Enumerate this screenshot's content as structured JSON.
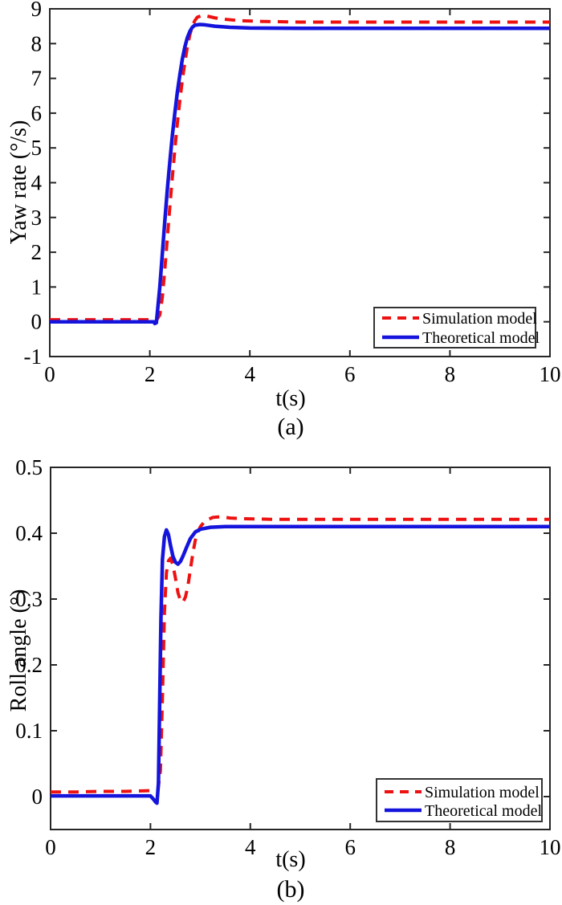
{
  "page": {
    "background": "#ffffff",
    "description": "Two stacked MATLAB-style line plots comparing simulation and theoretical vehicle models"
  },
  "colors": {
    "simulation": "#EE1111",
    "theoretical": "#1414DD",
    "axis": "#262626",
    "text": "#000000",
    "legend_border": "#333333",
    "background": "#ffffff"
  },
  "chart_data": [
    {
      "type": "line",
      "subtitle": "(a)",
      "xlabel": "t(s)",
      "ylabel": "Yaw rate (°/s)",
      "xlim": [
        0,
        10
      ],
      "ylim": [
        -1,
        9
      ],
      "grid": false,
      "xticks": {
        "values": [
          0,
          2,
          4,
          6,
          8,
          10
        ],
        "labels": [
          "0",
          "2",
          "4",
          "6",
          "8",
          "10"
        ]
      },
      "yticks": {
        "values": [
          -1,
          0,
          1,
          2,
          3,
          4,
          5,
          6,
          7,
          8,
          9
        ],
        "labels": [
          "-1",
          "0",
          "1",
          "2",
          "3",
          "4",
          "5",
          "6",
          "7",
          "8",
          "9"
        ]
      },
      "legend": {
        "position": "bottom-right",
        "items": [
          {
            "label": "Simulation model",
            "color": "#EE1111",
            "style": "dashed"
          },
          {
            "label": "Theoretical model",
            "color": "#1414DD",
            "style": "solid"
          }
        ]
      },
      "series": [
        {
          "name": "Simulation model",
          "color": "#EE1111",
          "style": "dashed",
          "points": [
            [
              0,
              0.06
            ],
            [
              0.5,
              0.06
            ],
            [
              1,
              0.06
            ],
            [
              1.5,
              0.06
            ],
            [
              2,
              0.06
            ],
            [
              2.15,
              0.08
            ],
            [
              2.2,
              0.2
            ],
            [
              2.25,
              0.7
            ],
            [
              2.3,
              1.5
            ],
            [
              2.35,
              2.4
            ],
            [
              2.4,
              3.3
            ],
            [
              2.45,
              4.15
            ],
            [
              2.5,
              4.95
            ],
            [
              2.55,
              5.7
            ],
            [
              2.6,
              6.35
            ],
            [
              2.65,
              6.95
            ],
            [
              2.7,
              7.45
            ],
            [
              2.75,
              7.9
            ],
            [
              2.8,
              8.25
            ],
            [
              2.85,
              8.5
            ],
            [
              2.9,
              8.66
            ],
            [
              2.95,
              8.76
            ],
            [
              3.05,
              8.81
            ],
            [
              3.15,
              8.79
            ],
            [
              3.3,
              8.74
            ],
            [
              3.5,
              8.7
            ],
            [
              3.8,
              8.66
            ],
            [
              4.2,
              8.64
            ],
            [
              4.6,
              8.63
            ],
            [
              5,
              8.62
            ],
            [
              6,
              8.62
            ],
            [
              7,
              8.62
            ],
            [
              8,
              8.62
            ],
            [
              9,
              8.62
            ],
            [
              10,
              8.62
            ]
          ]
        },
        {
          "name": "Theoretical model",
          "color": "#1414DD",
          "style": "solid",
          "points": [
            [
              0,
              0
            ],
            [
              0.5,
              0
            ],
            [
              1,
              0
            ],
            [
              1.5,
              0
            ],
            [
              2,
              0
            ],
            [
              2.08,
              0
            ],
            [
              2.1,
              -0.05
            ],
            [
              2.13,
              -0.03
            ],
            [
              2.15,
              0.25
            ],
            [
              2.2,
              1.0
            ],
            [
              2.25,
              1.95
            ],
            [
              2.3,
              2.9
            ],
            [
              2.35,
              3.8
            ],
            [
              2.4,
              4.6
            ],
            [
              2.45,
              5.35
            ],
            [
              2.5,
              6.0
            ],
            [
              2.55,
              6.6
            ],
            [
              2.6,
              7.1
            ],
            [
              2.65,
              7.55
            ],
            [
              2.7,
              7.9
            ],
            [
              2.75,
              8.17
            ],
            [
              2.8,
              8.35
            ],
            [
              2.85,
              8.47
            ],
            [
              2.9,
              8.53
            ],
            [
              3.0,
              8.55
            ],
            [
              3.1,
              8.54
            ],
            [
              3.3,
              8.5
            ],
            [
              3.6,
              8.47
            ],
            [
              4,
              8.45
            ],
            [
              5,
              8.44
            ],
            [
              6,
              8.44
            ],
            [
              7,
              8.44
            ],
            [
              8,
              8.44
            ],
            [
              9,
              8.44
            ],
            [
              10,
              8.44
            ]
          ]
        }
      ]
    },
    {
      "type": "line",
      "subtitle": "(b)",
      "xlabel": "t(s)",
      "ylabel": "Roll angle (°)",
      "xlim": [
        0,
        10
      ],
      "ylim": [
        -0.05,
        0.5
      ],
      "grid": false,
      "xticks": {
        "values": [
          0,
          2,
          4,
          6,
          8,
          10
        ],
        "labels": [
          "0",
          "2",
          "4",
          "6",
          "8",
          "10"
        ]
      },
      "yticks": {
        "values": [
          0,
          0.1,
          0.2,
          0.3,
          0.4,
          0.5
        ],
        "labels": [
          "0",
          "0.1",
          "0.2",
          "0.3",
          "0.4",
          "0.5"
        ]
      },
      "legend": {
        "position": "bottom-right",
        "items": [
          {
            "label": "Simulation model",
            "color": "#EE1111",
            "style": "dashed"
          },
          {
            "label": "Theoretical model",
            "color": "#1414DD",
            "style": "solid"
          }
        ]
      },
      "series": [
        {
          "name": "Simulation model",
          "color": "#EE1111",
          "style": "dashed",
          "points": [
            [
              0,
              0.007
            ],
            [
              0.5,
              0.007
            ],
            [
              1,
              0.008
            ],
            [
              1.5,
              0.008
            ],
            [
              2,
              0.009
            ],
            [
              2.15,
              0.01
            ],
            [
              2.2,
              0.04
            ],
            [
              2.24,
              0.15
            ],
            [
              2.28,
              0.28
            ],
            [
              2.32,
              0.34
            ],
            [
              2.36,
              0.358
            ],
            [
              2.4,
              0.362
            ],
            [
              2.45,
              0.352
            ],
            [
              2.5,
              0.332
            ],
            [
              2.55,
              0.31
            ],
            [
              2.6,
              0.298
            ],
            [
              2.65,
              0.295
            ],
            [
              2.7,
              0.303
            ],
            [
              2.75,
              0.32
            ],
            [
              2.8,
              0.345
            ],
            [
              2.85,
              0.37
            ],
            [
              2.9,
              0.39
            ],
            [
              2.95,
              0.402
            ],
            [
              3.0,
              0.41
            ],
            [
              3.1,
              0.419
            ],
            [
              3.25,
              0.424
            ],
            [
              3.4,
              0.425
            ],
            [
              3.6,
              0.423
            ],
            [
              3.9,
              0.422
            ],
            [
              4.5,
              0.421
            ],
            [
              5,
              0.421
            ],
            [
              6,
              0.421
            ],
            [
              7,
              0.421
            ],
            [
              8,
              0.421
            ],
            [
              9,
              0.421
            ],
            [
              10,
              0.421
            ]
          ]
        },
        {
          "name": "Theoretical model",
          "color": "#1414DD",
          "style": "solid",
          "points": [
            [
              0,
              0.001
            ],
            [
              0.5,
              0.001
            ],
            [
              1,
              0.001
            ],
            [
              1.5,
              0.001
            ],
            [
              2,
              0.001
            ],
            [
              2.06,
              -0.004
            ],
            [
              2.1,
              -0.008
            ],
            [
              2.13,
              -0.01
            ],
            [
              2.16,
              0.02
            ],
            [
              2.18,
              0.12
            ],
            [
              2.21,
              0.27
            ],
            [
              2.24,
              0.36
            ],
            [
              2.28,
              0.395
            ],
            [
              2.32,
              0.405
            ],
            [
              2.36,
              0.398
            ],
            [
              2.4,
              0.382
            ],
            [
              2.45,
              0.365
            ],
            [
              2.5,
              0.356
            ],
            [
              2.55,
              0.353
            ],
            [
              2.6,
              0.357
            ],
            [
              2.65,
              0.365
            ],
            [
              2.72,
              0.378
            ],
            [
              2.8,
              0.392
            ],
            [
              2.9,
              0.402
            ],
            [
              3.0,
              0.406
            ],
            [
              3.2,
              0.409
            ],
            [
              3.5,
              0.41
            ],
            [
              4,
              0.41
            ],
            [
              5,
              0.41
            ],
            [
              6,
              0.41
            ],
            [
              7,
              0.41
            ],
            [
              8,
              0.41
            ],
            [
              9,
              0.41
            ],
            [
              10,
              0.41
            ]
          ]
        }
      ]
    }
  ]
}
